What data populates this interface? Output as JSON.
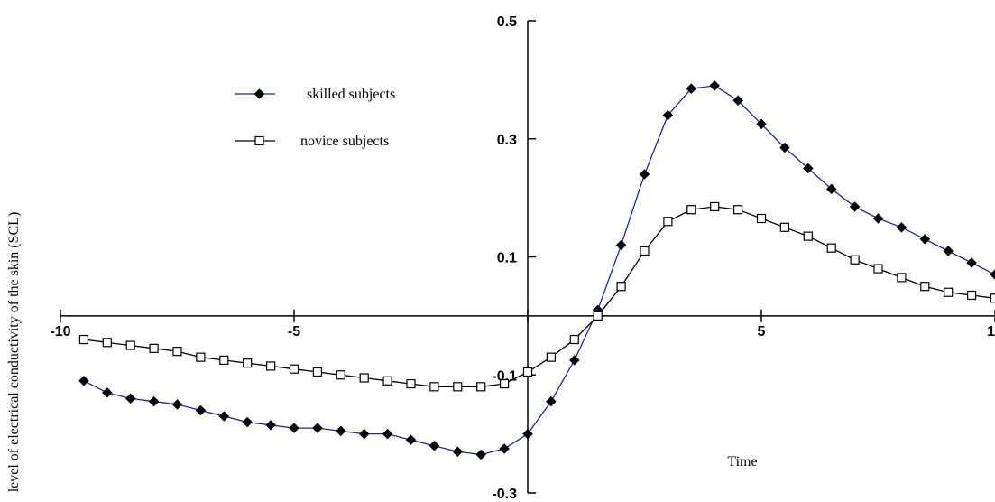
{
  "chart_data": {
    "type": "line",
    "title": "",
    "xlabel": "Time",
    "ylabel": "level of electrical conductivity of the skin (SCL)",
    "xlim": [
      -10,
      10
    ],
    "ylim": [
      -0.3,
      0.5
    ],
    "grid": false,
    "legend_position": "top-left",
    "x_ticks": [
      -10,
      -5,
      0,
      5,
      10
    ],
    "x_tick_labels": [
      "-10",
      "-5",
      "",
      "5",
      "10"
    ],
    "y_ticks": [
      0.5,
      0.3,
      0.1,
      -0.1,
      -0.3
    ],
    "y_tick_labels": [
      "0.5",
      "0.3",
      "0.1",
      "-0.1",
      "-0.3"
    ],
    "series": [
      {
        "name": "skilled subjects",
        "color": "#1f2a8a",
        "marker": "filled-diamond",
        "x": [
          -9.5,
          -9.0,
          -8.5,
          -8.0,
          -7.5,
          -7.0,
          -6.5,
          -6.0,
          -5.5,
          -5.0,
          -4.5,
          -4.0,
          -3.5,
          -3.0,
          -2.5,
          -2.0,
          -1.5,
          -1.0,
          -0.5,
          0.0,
          0.5,
          1.0,
          1.5,
          2.0,
          2.5,
          3.0,
          3.5,
          4.0,
          4.5,
          5.0,
          5.5,
          6.0,
          6.5,
          7.0,
          7.5,
          8.0,
          8.5,
          9.0,
          9.5,
          10.0
        ],
        "y": [
          -0.11,
          -0.13,
          -0.14,
          -0.145,
          -0.15,
          -0.16,
          -0.17,
          -0.18,
          -0.185,
          -0.19,
          -0.19,
          -0.195,
          -0.2,
          -0.2,
          -0.21,
          -0.22,
          -0.23,
          -0.235,
          -0.225,
          -0.2,
          -0.145,
          -0.075,
          0.01,
          0.12,
          0.24,
          0.34,
          0.385,
          0.39,
          0.365,
          0.325,
          0.285,
          0.25,
          0.215,
          0.185,
          0.165,
          0.15,
          0.13,
          0.11,
          0.09,
          0.07
        ]
      },
      {
        "name": "novice subjects",
        "color": "#000000",
        "marker": "open-square",
        "x": [
          -9.5,
          -9.0,
          -8.5,
          -8.0,
          -7.5,
          -7.0,
          -6.5,
          -6.0,
          -5.5,
          -5.0,
          -4.5,
          -4.0,
          -3.5,
          -3.0,
          -2.5,
          -2.0,
          -1.5,
          -1.0,
          -0.5,
          0.0,
          0.5,
          1.0,
          1.5,
          2.0,
          2.5,
          3.0,
          3.5,
          4.0,
          4.5,
          5.0,
          5.5,
          6.0,
          6.5,
          7.0,
          7.5,
          8.0,
          8.5,
          9.0,
          9.5,
          10.0
        ],
        "y": [
          -0.04,
          -0.045,
          -0.05,
          -0.055,
          -0.06,
          -0.07,
          -0.075,
          -0.08,
          -0.085,
          -0.09,
          -0.095,
          -0.1,
          -0.105,
          -0.11,
          -0.115,
          -0.12,
          -0.12,
          -0.12,
          -0.115,
          -0.095,
          -0.07,
          -0.04,
          0.0,
          0.05,
          0.11,
          0.16,
          0.18,
          0.185,
          0.18,
          0.165,
          0.15,
          0.135,
          0.115,
          0.095,
          0.08,
          0.065,
          0.05,
          0.04,
          0.035,
          0.03
        ]
      }
    ]
  }
}
